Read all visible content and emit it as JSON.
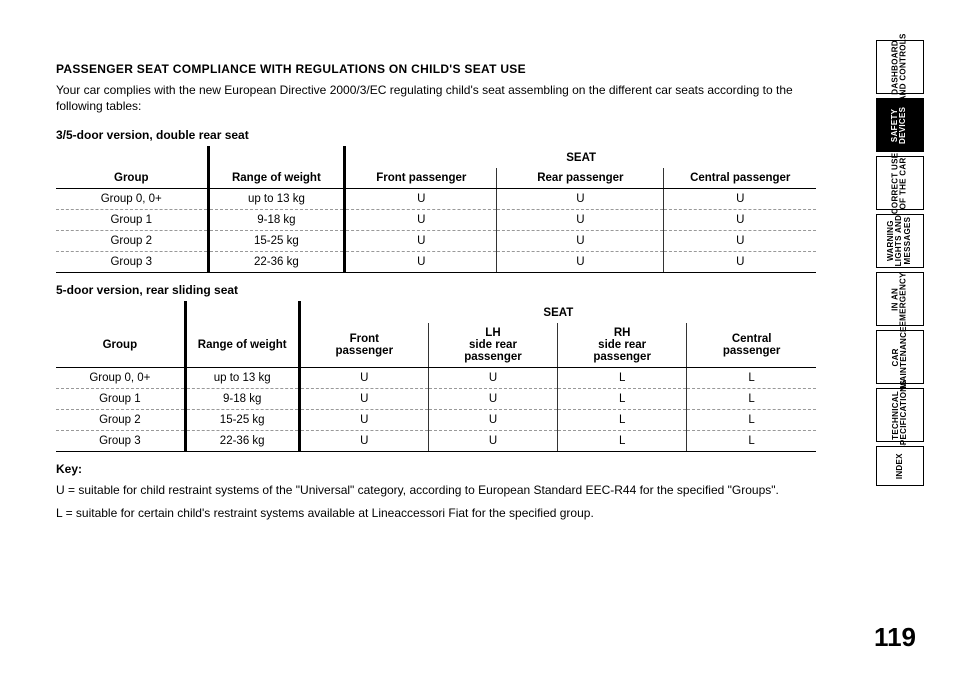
{
  "title": "PASSENGER SEAT COMPLIANCE WITH REGULATIONS ON CHILD'S SEAT USE",
  "intro": "Your car complies with the new European Directive 2000/3/EC regulating child's seat assembling on the different car seats according to the following tables:",
  "page_number": "119",
  "table1": {
    "subheading": "3/5-door version, double rear seat",
    "seat_header": "SEAT",
    "columns": [
      "Group",
      "Range of weight",
      "Front passenger",
      "Rear passenger",
      "Central passenger"
    ],
    "rows": [
      [
        "Group 0, 0+",
        "up to 13 kg",
        "U",
        "U",
        "U"
      ],
      [
        "Group 1",
        "9-18 kg",
        "U",
        "U",
        "U"
      ],
      [
        "Group 2",
        "15-25 kg",
        "U",
        "U",
        "U"
      ],
      [
        "Group 3",
        "22-36 kg",
        "U",
        "U",
        "U"
      ]
    ],
    "col_widths": [
      "20%",
      "18%",
      "20%",
      "22%",
      "20%"
    ]
  },
  "table2": {
    "subheading": "5-door version, rear sliding seat",
    "seat_header": "SEAT",
    "columns": [
      "Group",
      "Range of weight",
      "Front\npassenger",
      "LH\nside rear\npassenger",
      "RH\nside rear\npassenger",
      "Central\npassenger"
    ],
    "rows": [
      [
        "Group 0, 0+",
        "up to 13 kg",
        "U",
        "U",
        "L",
        "L"
      ],
      [
        "Group 1",
        "9-18 kg",
        "U",
        "U",
        "L",
        "L"
      ],
      [
        "Group 2",
        "15-25 kg",
        "U",
        "U",
        "L",
        "L"
      ],
      [
        "Group 3",
        "22-36 kg",
        "U",
        "U",
        "L",
        "L"
      ]
    ],
    "col_widths": [
      "17%",
      "15%",
      "17%",
      "17%",
      "17%",
      "17%"
    ]
  },
  "key": {
    "title": "Key:",
    "lines": [
      "U = suitable for child restraint systems of the \"Universal\" category, according to European Standard EEC-R44 for the specified \"Groups\".",
      "L = suitable for certain child's restraint systems available at Lineaccessori Fiat for the specified group."
    ]
  },
  "tabs": [
    {
      "label": "DASHBOARD\nAND CONTROLS",
      "active": false
    },
    {
      "label": "SAFETY\nDEVICES",
      "active": true
    },
    {
      "label": "CORRECT USE\nOF THE CAR",
      "active": false
    },
    {
      "label": "WARNING\nLIGHTS AND\nMESSAGES",
      "active": false
    },
    {
      "label": "IN AN\nEMERGENCY",
      "active": false
    },
    {
      "label": "CAR\nMAINTENANCE",
      "active": false
    },
    {
      "label": "TECHNICAL\nSPECIFICATIONS",
      "active": false
    },
    {
      "label": "INDEX",
      "active": false,
      "short": true
    }
  ]
}
